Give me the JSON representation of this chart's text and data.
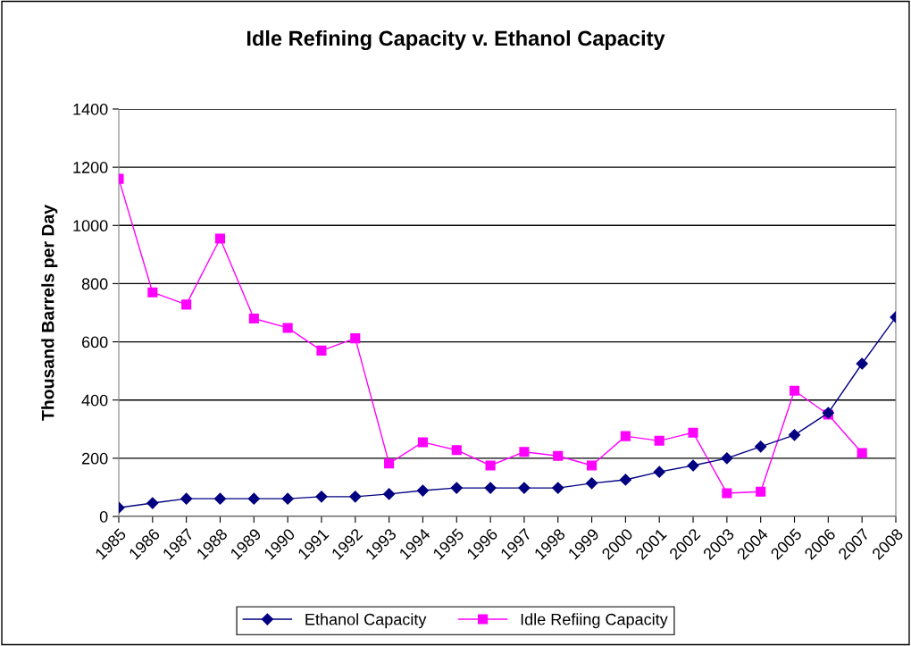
{
  "chart_data": {
    "type": "line",
    "title": "Idle Refining Capacity v. Ethanol Capacity",
    "ylabel": "Thousand Barrels per Day",
    "categories": [
      "1985",
      "1986",
      "1987",
      "1988",
      "1989",
      "1990",
      "1991",
      "1992",
      "1993",
      "1994",
      "1995",
      "1996",
      "1997",
      "1998",
      "1999",
      "2000",
      "2001",
      "2002",
      "2003",
      "2004",
      "2005",
      "2006",
      "2007",
      "2008"
    ],
    "series": [
      {
        "name": "Ethanol Capacity",
        "color": "#000080",
        "marker": "diamond",
        "values": [
          30,
          46,
          61,
          61,
          61,
          61,
          68,
          68,
          77,
          89,
          98,
          98,
          98,
          98,
          114,
          126,
          153,
          175,
          200,
          240,
          280,
          356,
          525,
          685
        ]
      },
      {
        "name": "Idle Refiing Capacity",
        "color": "#ff00ff",
        "marker": "square",
        "values": [
          1160,
          770,
          728,
          955,
          680,
          648,
          570,
          612,
          182,
          255,
          228,
          175,
          222,
          208,
          175,
          276,
          260,
          288,
          80,
          85,
          432,
          350,
          218,
          null
        ]
      }
    ],
    "ylim": [
      0,
      1400
    ],
    "yticks": [
      0,
      200,
      400,
      600,
      800,
      1000,
      1200,
      1400
    ],
    "grid": "y",
    "legend": "bottom",
    "line_style": "solid"
  }
}
